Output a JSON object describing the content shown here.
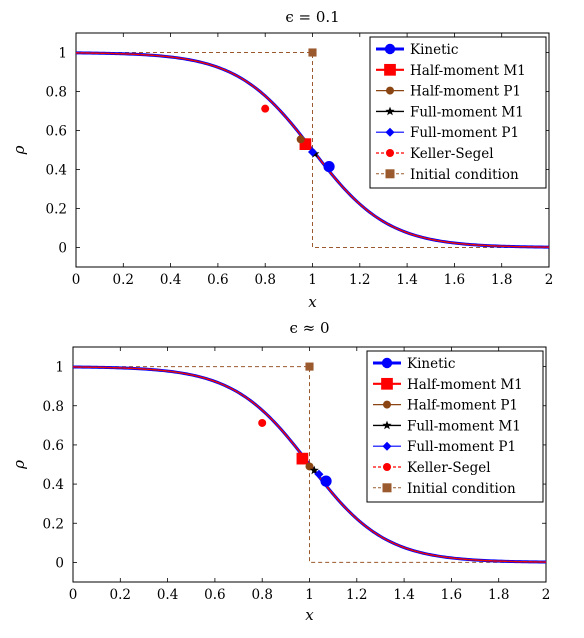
{
  "chart_data": [
    {
      "type": "line",
      "title": "ϵ = 0.1",
      "xlabel": "x",
      "ylabel": "ρ",
      "xlim": [
        0,
        2
      ],
      "ylim": [
        -0.1,
        1.1
      ],
      "xticks": [
        "0",
        "0.2",
        "0.4",
        "0.6",
        "0.8",
        "1",
        "1.2",
        "1.4",
        "1.6",
        "1.8",
        "2"
      ],
      "yticks": [
        "0",
        "0.2",
        "0.4",
        "0.6",
        "0.8",
        "1"
      ],
      "grid": false,
      "legend_position": "top-right",
      "series": [
        {
          "name": "Kinetic",
          "color": "#0000ff",
          "marker": "circle",
          "x": [
            0,
            0.2,
            0.4,
            0.6,
            0.8,
            1.0,
            1.07,
            1.2,
            1.4,
            1.6,
            1.8,
            2.0
          ],
          "y": [
            1.0,
            0.977,
            0.917,
            0.836,
            0.712,
            0.49,
            0.415,
            0.275,
            0.12,
            0.05,
            0.02,
            0.006
          ]
        },
        {
          "name": "Half-moment M1",
          "color": "#ff0000",
          "marker": "square",
          "x": [
            0.97
          ],
          "y": [
            0.53
          ]
        },
        {
          "name": "Half-moment P1",
          "color": "#8b4513",
          "marker": "circle",
          "x": [
            0.95
          ],
          "y": [
            0.555
          ]
        },
        {
          "name": "Full-moment M1",
          "color": "#000000",
          "marker": "star",
          "x": [
            1.01
          ],
          "y": [
            0.48
          ]
        },
        {
          "name": "Full-moment P1",
          "color": "#0000ff",
          "marker": "diamond",
          "x": [
            1.0
          ],
          "y": [
            0.49
          ]
        },
        {
          "name": "Keller-Segel",
          "color": "#ff0000",
          "marker": "circle",
          "x": [
            0.8
          ],
          "y": [
            0.712
          ]
        },
        {
          "name": "Initial condition",
          "color": "#9b5a2e",
          "marker": "square",
          "x": [
            0,
            1.0,
            1.0,
            2.0
          ],
          "y": [
            1,
            1,
            0,
            0
          ]
        }
      ]
    },
    {
      "type": "line",
      "title": "ϵ ≈ 0",
      "xlabel": "x",
      "ylabel": "ρ",
      "xlim": [
        0,
        2
      ],
      "ylim": [
        -0.1,
        1.1
      ],
      "xticks": [
        "0",
        "0.2",
        "0.4",
        "0.6",
        "0.8",
        "1",
        "1.2",
        "1.4",
        "1.6",
        "1.8",
        "2"
      ],
      "yticks": [
        "0",
        "0.2",
        "0.4",
        "0.6",
        "0.8",
        "1"
      ],
      "grid": false,
      "legend_position": "top-right",
      "series": [
        {
          "name": "Kinetic",
          "color": "#0000ff",
          "marker": "circle",
          "x": [
            0,
            0.2,
            0.4,
            0.6,
            0.8,
            1.0,
            1.07,
            1.2,
            1.4,
            1.6,
            1.8,
            2.0
          ],
          "y": [
            1.0,
            0.977,
            0.917,
            0.836,
            0.712,
            0.49,
            0.415,
            0.275,
            0.12,
            0.05,
            0.02,
            0.006
          ]
        },
        {
          "name": "Half-moment M1",
          "color": "#ff0000",
          "marker": "square",
          "x": [
            0.97
          ],
          "y": [
            0.53
          ]
        },
        {
          "name": "Half-moment P1",
          "color": "#8b4513",
          "marker": "circle",
          "x": [
            1.0
          ],
          "y": [
            0.49
          ]
        },
        {
          "name": "Full-moment M1",
          "color": "#000000",
          "marker": "star",
          "x": [
            1.02
          ],
          "y": [
            0.47
          ]
        },
        {
          "name": "Full-moment P1",
          "color": "#0000ff",
          "marker": "diamond",
          "x": [
            1.04
          ],
          "y": [
            0.45
          ]
        },
        {
          "name": "Keller-Segel",
          "color": "#ff0000",
          "marker": "circle",
          "x": [
            0.8
          ],
          "y": [
            0.712
          ]
        },
        {
          "name": "Initial condition",
          "color": "#9b5a2e",
          "marker": "square",
          "x": [
            0,
            1.0,
            1.0,
            2.0
          ],
          "y": [
            1,
            1,
            0,
            0
          ]
        }
      ]
    }
  ]
}
